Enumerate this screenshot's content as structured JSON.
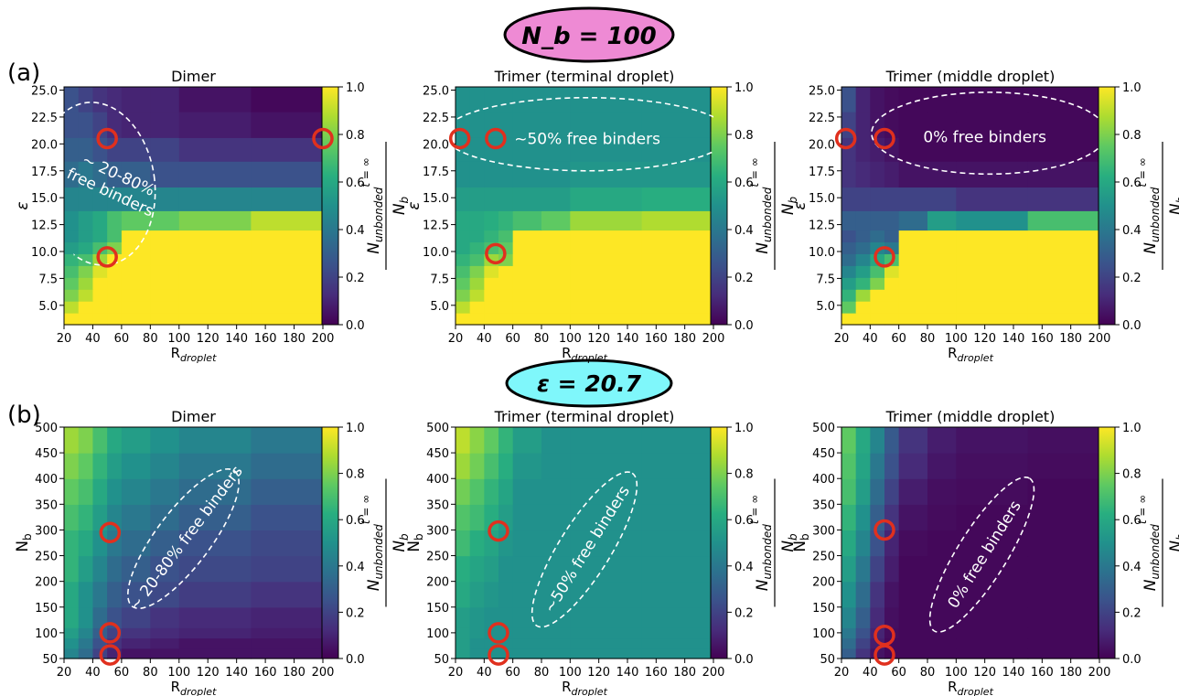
{
  "figure": {
    "row_a_label": "(a)",
    "row_b_label": "(b)",
    "row_a_header": "N_b = 100",
    "row_a_header_bg": "#ee8ad4",
    "row_b_header": "ε = 20.7",
    "row_b_header_bg": "#7ff7fb",
    "colormap": "viridis",
    "colorbar": {
      "ticks": [
        "0.0",
        "0.2",
        "0.4",
        "0.6",
        "0.8",
        "1.0"
      ],
      "label": "N_unbonded^(t=∞) / N_b"
    },
    "marker_color": "#e0301e"
  },
  "chart_data": [
    {
      "type": "heatmap",
      "title": "Dimer",
      "xlabel": "R_droplet",
      "ylabel": "ε",
      "x_edges": [
        20,
        30,
        40,
        50,
        60,
        80,
        100,
        150,
        200
      ],
      "y_edges": [
        3.2,
        4.3,
        5.4,
        6.5,
        7.6,
        8.7,
        9.8,
        10.9,
        12.0,
        13.8,
        16.0,
        18.4,
        20.6,
        23.0,
        25.3
      ],
      "xticks": [
        "20",
        "40",
        "60",
        "80",
        "100",
        "120",
        "140",
        "160",
        "180",
        "200"
      ],
      "yticks": [
        "5.0",
        "7.5",
        "10.0",
        "12.5",
        "15.0",
        "17.5",
        "20.0",
        "22.5",
        "25.0"
      ],
      "values": [
        [
          1,
          1,
          1,
          1,
          1,
          1,
          1,
          1
        ],
        [
          0.9,
          1,
          1,
          1,
          1,
          1,
          1,
          1
        ],
        [
          0.8,
          0.9,
          1,
          1,
          1,
          1,
          1,
          1
        ],
        [
          0.75,
          0.85,
          1,
          1,
          1,
          1,
          1,
          1
        ],
        [
          0.7,
          0.8,
          0.95,
          1,
          1,
          1,
          1,
          1
        ],
        [
          0.65,
          0.7,
          0.85,
          1,
          1,
          1,
          1,
          1
        ],
        [
          0.55,
          0.6,
          0.7,
          0.8,
          1,
          1,
          1,
          1
        ],
        [
          0.5,
          0.55,
          0.6,
          0.7,
          1,
          1,
          1,
          1
        ],
        [
          0.5,
          0.55,
          0.6,
          0.7,
          0.75,
          0.75,
          0.8,
          0.9
        ],
        [
          0.45,
          0.45,
          0.45,
          0.45,
          0.45,
          0.45,
          0.45,
          0.45
        ],
        [
          0.35,
          0.4,
          0.35,
          0.3,
          0.3,
          0.25,
          0.25,
          0.25
        ],
        [
          0.3,
          0.3,
          0.25,
          0.2,
          0.2,
          0.2,
          0.15,
          0.15
        ],
        [
          0.25,
          0.25,
          0.2,
          0.12,
          0.1,
          0.1,
          0.08,
          0.05
        ],
        [
          0.25,
          0.2,
          0.15,
          0.12,
          0.1,
          0.1,
          0.05,
          0.02
        ]
      ],
      "markers": [
        {
          "x": 50,
          "y": 20.5
        },
        {
          "x": 50,
          "y": 9.5
        },
        {
          "x": 200,
          "y": 20.5
        }
      ],
      "annotation": "~ 20-80%\nfree binders",
      "ellipse": {
        "cx": 43,
        "cy": 16.3,
        "rx": 40,
        "ry": 7.6,
        "angle": -8
      },
      "annotation_at": {
        "x": 55,
        "y": 16.3
      },
      "annotation_angle": 25
    },
    {
      "type": "heatmap",
      "title": "Trimer (terminal droplet)",
      "xlabel": "R_droplet",
      "ylabel": "ε",
      "x_edges": [
        20,
        30,
        40,
        50,
        60,
        80,
        100,
        150,
        200
      ],
      "y_edges": [
        3.2,
        4.3,
        5.4,
        6.5,
        7.6,
        8.7,
        9.8,
        10.9,
        12.0,
        13.8,
        16.0,
        18.4,
        20.6,
        23.0,
        25.3
      ],
      "xticks": [
        "20",
        "40",
        "60",
        "80",
        "100",
        "120",
        "140",
        "160",
        "180",
        "200"
      ],
      "yticks": [
        "5.0",
        "7.5",
        "10.0",
        "12.5",
        "15.0",
        "17.5",
        "20.0",
        "22.5",
        "25.0"
      ],
      "values": [
        [
          1,
          1,
          1,
          1,
          1,
          1,
          1,
          1
        ],
        [
          0.9,
          1,
          1,
          1,
          1,
          1,
          1,
          1
        ],
        [
          0.8,
          0.9,
          1,
          1,
          1,
          1,
          1,
          1
        ],
        [
          0.75,
          0.85,
          1,
          1,
          1,
          1,
          1,
          1
        ],
        [
          0.7,
          0.8,
          0.95,
          1,
          1,
          1,
          1,
          1
        ],
        [
          0.65,
          0.7,
          0.85,
          0.8,
          1,
          1,
          1,
          1
        ],
        [
          0.6,
          0.65,
          0.7,
          0.75,
          1,
          1,
          1,
          1
        ],
        [
          0.6,
          0.6,
          0.65,
          0.7,
          1,
          1,
          1,
          1
        ],
        [
          0.6,
          0.6,
          0.62,
          0.65,
          0.7,
          0.75,
          0.85,
          0.88
        ],
        [
          0.55,
          0.55,
          0.55,
          0.55,
          0.55,
          0.55,
          0.6,
          0.62
        ],
        [
          0.5,
          0.5,
          0.5,
          0.5,
          0.5,
          0.5,
          0.52,
          0.52
        ],
        [
          0.5,
          0.5,
          0.5,
          0.5,
          0.5,
          0.5,
          0.5,
          0.5
        ],
        [
          0.5,
          0.5,
          0.5,
          0.5,
          0.5,
          0.5,
          0.5,
          0.5
        ],
        [
          0.5,
          0.5,
          0.5,
          0.5,
          0.5,
          0.5,
          0.5,
          0.5
        ]
      ],
      "markers": [
        {
          "x": 23,
          "y": 20.5
        },
        {
          "x": 48,
          "y": 20.5
        },
        {
          "x": 48,
          "y": 9.8
        }
      ],
      "annotation": "~50% free binders",
      "ellipse": {
        "cx": 112,
        "cy": 20.9,
        "rx": 100,
        "ry": 3.4,
        "angle": 0
      },
      "annotation_at": {
        "x": 112,
        "y": 20.4
      },
      "annotation_angle": 0
    },
    {
      "type": "heatmap",
      "title": "Trimer (middle droplet)",
      "xlabel": "R_droplet",
      "ylabel": "ε",
      "x_edges": [
        20,
        30,
        40,
        50,
        60,
        80,
        100,
        150,
        200
      ],
      "y_edges": [
        3.2,
        4.3,
        5.4,
        6.5,
        7.6,
        8.7,
        9.8,
        10.9,
        12.0,
        13.8,
        16.0,
        18.4,
        20.6,
        23.0,
        25.3
      ],
      "xticks": [
        "20",
        "40",
        "60",
        "80",
        "100",
        "120",
        "140",
        "160",
        "180",
        "200"
      ],
      "yticks": [
        "5.0",
        "7.5",
        "10.0",
        "12.5",
        "15.0",
        "17.5",
        "20.0",
        "22.5",
        "25.0"
      ],
      "values": [
        [
          1,
          1,
          1,
          1,
          1,
          1,
          1,
          1
        ],
        [
          0.75,
          1,
          1,
          1,
          1,
          1,
          1,
          1
        ],
        [
          0.65,
          0.85,
          1,
          1,
          1,
          1,
          1,
          1
        ],
        [
          0.55,
          0.65,
          0.8,
          1,
          1,
          1,
          1,
          1
        ],
        [
          0.45,
          0.55,
          0.7,
          0.95,
          1,
          1,
          1,
          1
        ],
        [
          0.35,
          0.45,
          0.6,
          0.7,
          1,
          1,
          1,
          1
        ],
        [
          0.3,
          0.35,
          0.45,
          0.4,
          1,
          1,
          1,
          1
        ],
        [
          0.25,
          0.3,
          0.35,
          0.3,
          1,
          1,
          1,
          1
        ],
        [
          0.3,
          0.3,
          0.3,
          0.3,
          0.35,
          0.55,
          0.5,
          0.7
        ],
        [
          0.2,
          0.2,
          0.2,
          0.2,
          0.2,
          0.2,
          0.15,
          0.15
        ],
        [
          0.15,
          0.12,
          0.1,
          0.08,
          0.05,
          0.05,
          0.05,
          0.05
        ],
        [
          0.15,
          0.1,
          0.08,
          0.05,
          0.02,
          0.02,
          0.02,
          0.02
        ],
        [
          0.2,
          0.1,
          0.05,
          0.03,
          0.02,
          0.02,
          0.02,
          0.02
        ],
        [
          0.25,
          0.1,
          0.05,
          0.03,
          0.02,
          0.02,
          0.02,
          0.02
        ]
      ],
      "markers": [
        {
          "x": 23,
          "y": 20.5
        },
        {
          "x": 50,
          "y": 20.5
        },
        {
          "x": 50,
          "y": 9.5
        }
      ],
      "annotation": "0% free binders",
      "ellipse": {
        "cx": 123,
        "cy": 21.0,
        "rx": 82,
        "ry": 3.8,
        "angle": 0
      },
      "annotation_at": {
        "x": 120,
        "y": 20.6
      },
      "annotation_angle": 0
    },
    {
      "type": "heatmap",
      "title": "Dimer",
      "xlabel": "R_droplet",
      "ylabel": "N_b",
      "x_edges": [
        20,
        30,
        40,
        50,
        60,
        80,
        100,
        150,
        200
      ],
      "y_edges": [
        50,
        70,
        90,
        110,
        150,
        200,
        250,
        300,
        350,
        400,
        450,
        500
      ],
      "xticks": [
        "20",
        "40",
        "60",
        "80",
        "100",
        "120",
        "140",
        "160",
        "180",
        "200"
      ],
      "yticks": [
        "50",
        "100",
        "150",
        "200",
        "250",
        "300",
        "350",
        "400",
        "450",
        "500"
      ],
      "values": [
        [
          0.45,
          0.35,
          0.2,
          0.1,
          0.05,
          0.05,
          0.05,
          0.05
        ],
        [
          0.5,
          0.4,
          0.25,
          0.15,
          0.1,
          0.08,
          0.05,
          0.05
        ],
        [
          0.55,
          0.45,
          0.3,
          0.2,
          0.15,
          0.12,
          0.1,
          0.08
        ],
        [
          0.6,
          0.5,
          0.35,
          0.25,
          0.2,
          0.15,
          0.12,
          0.1
        ],
        [
          0.6,
          0.5,
          0.4,
          0.3,
          0.25,
          0.22,
          0.18,
          0.15
        ],
        [
          0.65,
          0.55,
          0.45,
          0.35,
          0.3,
          0.25,
          0.22,
          0.2
        ],
        [
          0.65,
          0.6,
          0.5,
          0.4,
          0.35,
          0.3,
          0.25,
          0.22
        ],
        [
          0.7,
          0.65,
          0.55,
          0.45,
          0.4,
          0.35,
          0.3,
          0.25
        ],
        [
          0.75,
          0.7,
          0.6,
          0.5,
          0.45,
          0.4,
          0.35,
          0.3
        ],
        [
          0.8,
          0.75,
          0.65,
          0.55,
          0.5,
          0.45,
          0.4,
          0.35
        ],
        [
          0.85,
          0.8,
          0.7,
          0.6,
          0.55,
          0.5,
          0.45,
          0.4
        ]
      ],
      "markers": [
        {
          "x": 52,
          "y": 295
        },
        {
          "x": 52,
          "y": 100
        },
        {
          "x": 52,
          "y": 57
        }
      ],
      "annotation": "~ 20-80%  free binders",
      "ellipse": {
        "cx": 103,
        "cy": 283,
        "rx": 165,
        "ry": 53,
        "angle": -53
      },
      "annotation_at": {
        "x": 105,
        "y": 283
      },
      "annotation_angle": -53
    },
    {
      "type": "heatmap",
      "title": "Trimer (terminal droplet)",
      "xlabel": "R_droplet",
      "ylabel": "N_b",
      "x_edges": [
        20,
        30,
        40,
        50,
        60,
        80,
        100,
        150,
        200
      ],
      "y_edges": [
        50,
        70,
        90,
        110,
        150,
        200,
        250,
        300,
        350,
        400,
        450,
        500
      ],
      "xticks": [
        "20",
        "40",
        "60",
        "80",
        "100",
        "120",
        "140",
        "160",
        "180",
        "200"
      ],
      "yticks": [
        "50",
        "100",
        "150",
        "200",
        "250",
        "300",
        "350",
        "400",
        "450",
        "500"
      ],
      "values": [
        [
          0.55,
          0.5,
          0.5,
          0.5,
          0.5,
          0.5,
          0.5,
          0.5
        ],
        [
          0.55,
          0.5,
          0.5,
          0.5,
          0.5,
          0.5,
          0.5,
          0.5
        ],
        [
          0.55,
          0.52,
          0.5,
          0.5,
          0.5,
          0.5,
          0.5,
          0.5
        ],
        [
          0.55,
          0.52,
          0.5,
          0.5,
          0.5,
          0.5,
          0.5,
          0.5
        ],
        [
          0.6,
          0.55,
          0.52,
          0.5,
          0.5,
          0.5,
          0.5,
          0.5
        ],
        [
          0.62,
          0.58,
          0.55,
          0.5,
          0.5,
          0.5,
          0.5,
          0.5
        ],
        [
          0.68,
          0.62,
          0.58,
          0.52,
          0.5,
          0.5,
          0.5,
          0.5
        ],
        [
          0.72,
          0.68,
          0.62,
          0.55,
          0.5,
          0.5,
          0.5,
          0.5
        ],
        [
          0.78,
          0.72,
          0.65,
          0.58,
          0.5,
          0.5,
          0.5,
          0.5
        ],
        [
          0.85,
          0.78,
          0.7,
          0.62,
          0.52,
          0.5,
          0.5,
          0.5
        ],
        [
          0.9,
          0.82,
          0.75,
          0.65,
          0.55,
          0.5,
          0.5,
          0.5
        ]
      ],
      "markers": [
        {
          "x": 50,
          "y": 298
        },
        {
          "x": 50,
          "y": 100
        },
        {
          "x": 50,
          "y": 57
        }
      ],
      "annotation": "~50% free binders",
      "ellipse": {
        "cx": 110,
        "cy": 262,
        "rx": 175,
        "ry": 50,
        "angle": -58
      },
      "annotation_at": {
        "x": 112,
        "y": 262
      },
      "annotation_angle": -58
    },
    {
      "type": "heatmap",
      "title": "Trimer (middle droplet)",
      "xlabel": "R_droplet",
      "ylabel": "N_b",
      "x_edges": [
        20,
        30,
        40,
        50,
        60,
        80,
        100,
        150,
        200
      ],
      "y_edges": [
        50,
        70,
        90,
        110,
        150,
        200,
        250,
        300,
        350,
        400,
        450,
        500
      ],
      "xticks": [
        "20",
        "40",
        "60",
        "80",
        "100",
        "120",
        "140",
        "160",
        "180",
        "200"
      ],
      "yticks": [
        "50",
        "100",
        "150",
        "200",
        "250",
        "300",
        "350",
        "400",
        "450",
        "500"
      ],
      "values": [
        [
          0.3,
          0.15,
          0.05,
          0.02,
          0.02,
          0.02,
          0.02,
          0.02
        ],
        [
          0.35,
          0.2,
          0.08,
          0.02,
          0.02,
          0.02,
          0.02,
          0.02
        ],
        [
          0.4,
          0.25,
          0.1,
          0.03,
          0.02,
          0.02,
          0.02,
          0.02
        ],
        [
          0.45,
          0.3,
          0.12,
          0.04,
          0.02,
          0.02,
          0.02,
          0.02
        ],
        [
          0.5,
          0.35,
          0.15,
          0.05,
          0.02,
          0.02,
          0.02,
          0.02
        ],
        [
          0.55,
          0.4,
          0.2,
          0.08,
          0.02,
          0.02,
          0.02,
          0.02
        ],
        [
          0.6,
          0.45,
          0.25,
          0.1,
          0.03,
          0.02,
          0.02,
          0.02
        ],
        [
          0.65,
          0.5,
          0.3,
          0.15,
          0.05,
          0.03,
          0.02,
          0.02
        ],
        [
          0.7,
          0.55,
          0.35,
          0.2,
          0.08,
          0.04,
          0.03,
          0.02
        ],
        [
          0.72,
          0.58,
          0.4,
          0.25,
          0.12,
          0.06,
          0.04,
          0.03
        ],
        [
          0.75,
          0.6,
          0.45,
          0.28,
          0.15,
          0.08,
          0.05,
          0.04
        ]
      ],
      "markers": [
        {
          "x": 50,
          "y": 300
        },
        {
          "x": 50,
          "y": 95
        },
        {
          "x": 50,
          "y": 57
        }
      ],
      "annotation": "0% free binders",
      "ellipse": {
        "cx": 118,
        "cy": 252,
        "rx": 175,
        "ry": 48,
        "angle": -58
      },
      "annotation_at": {
        "x": 120,
        "y": 252
      },
      "annotation_angle": -58
    }
  ]
}
